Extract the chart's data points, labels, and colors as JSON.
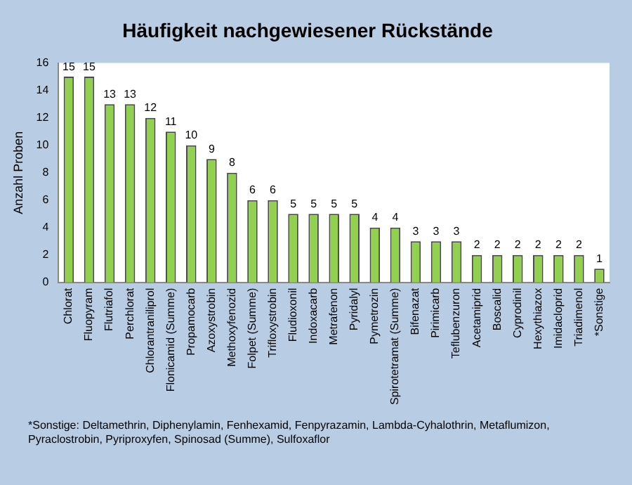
{
  "chart_data": {
    "type": "bar",
    "title": "Häufigkeit nachgewiesener Rückstände",
    "ylabel": "Anzahl Proben",
    "categories": [
      "Chlorat",
      "Fluopyram",
      "Flutriafol",
      "Perchlorat",
      "Chlorantraniliprol",
      "Flonicamid (Summe)",
      "Propamocarb",
      "Azoxystrobin",
      "Methoxyfenozid",
      "Folpet (Summe)",
      "Trifloxystrobin",
      "Fludioxonil",
      "Indoxacarb",
      "Metrafenon",
      "Pyridalyl",
      "Pymetrozin",
      "Spirotetramat (Summe)",
      "Bifenazat",
      "Pirimicarb",
      "Teflubenzuron",
      "Acetamiprid",
      "Boscalid",
      "Cyprodinil",
      "Hexythiazox",
      "Imidacloprid",
      "Triadimenol",
      "*Sonstige"
    ],
    "values": [
      15,
      15,
      13,
      13,
      12,
      11,
      10,
      9,
      8,
      6,
      6,
      5,
      5,
      5,
      5,
      4,
      4,
      3,
      3,
      3,
      2,
      2,
      2,
      2,
      2,
      2,
      1
    ],
    "color": "#92d050",
    "ylim": [
      0,
      16
    ],
    "yticks": [
      0,
      2,
      4,
      6,
      8,
      10,
      12,
      14,
      16
    ],
    "grid": false,
    "legend": false,
    "data_labels": true,
    "annotations": [
      "*Sonstige: Deltamethrin, Diphenylamin, Fenhexamid, Fenpyrazamin, Lambda-Cyhalothrin, Metaflumizon, Pyraclostrobin, Pyriproxyfen, Spinosad (Summe), Sulfoxaflor"
    ]
  }
}
